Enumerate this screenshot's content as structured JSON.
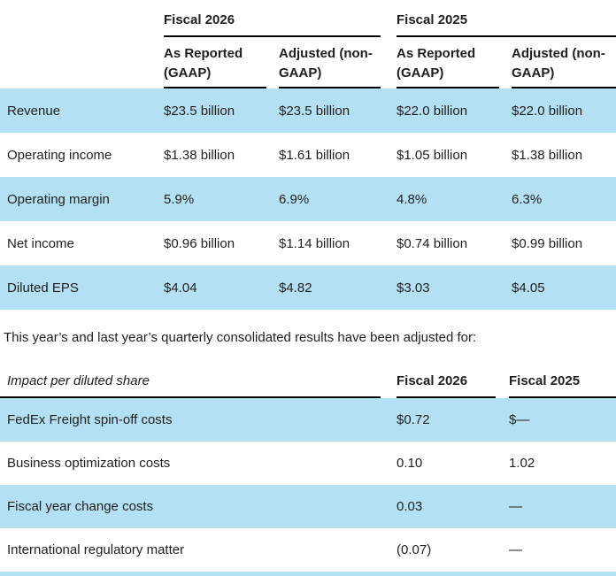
{
  "colors": {
    "row_highlight": "#b3e0f2",
    "text": "#1f1f1f",
    "rule": "#000000"
  },
  "results_table": {
    "groups": [
      {
        "label": "Fiscal 2026"
      },
      {
        "label": "Fiscal 2025"
      }
    ],
    "sub_headers": [
      "As Reported (GAAP)",
      "Adjusted (non-GAAP)",
      "As Reported (GAAP)",
      "Adjusted (non-GAAP)"
    ],
    "rows": [
      {
        "label": "Revenue",
        "values": [
          "$23.5 billion",
          "$23.5 billion",
          "$22.0 billion",
          "$22.0 billion"
        ]
      },
      {
        "label": "Operating income",
        "values": [
          "$1.38 billion",
          "$1.61 billion",
          "$1.05 billion",
          "$1.38 billion"
        ]
      },
      {
        "label": "Operating margin",
        "values": [
          "5.9%",
          "6.9%",
          "4.8%",
          "6.3%"
        ]
      },
      {
        "label": "Net income",
        "values": [
          "$0.96 billion",
          "$1.14 billion",
          "$0.74 billion",
          "$0.99 billion"
        ]
      },
      {
        "label": "Diluted EPS",
        "values": [
          "$4.04",
          "$4.82",
          "$3.03",
          "$4.05"
        ]
      }
    ]
  },
  "note": "This year’s and last year’s quarterly consolidated results have been adjusted for:",
  "impact_table": {
    "label_header": "Impact per diluted share",
    "col_headers": [
      "Fiscal 2026",
      "Fiscal 2025"
    ],
    "rows": [
      {
        "label": "FedEx Freight spin-off costs",
        "values": [
          "$0.72",
          "$—"
        ]
      },
      {
        "label": "Business optimization costs",
        "values": [
          "0.10",
          "1.02"
        ]
      },
      {
        "label": "Fiscal year change costs",
        "values": [
          "0.03",
          "—"
        ]
      },
      {
        "label": "International regulatory matter",
        "values": [
          "(0.07)",
          "—"
        ]
      }
    ]
  }
}
